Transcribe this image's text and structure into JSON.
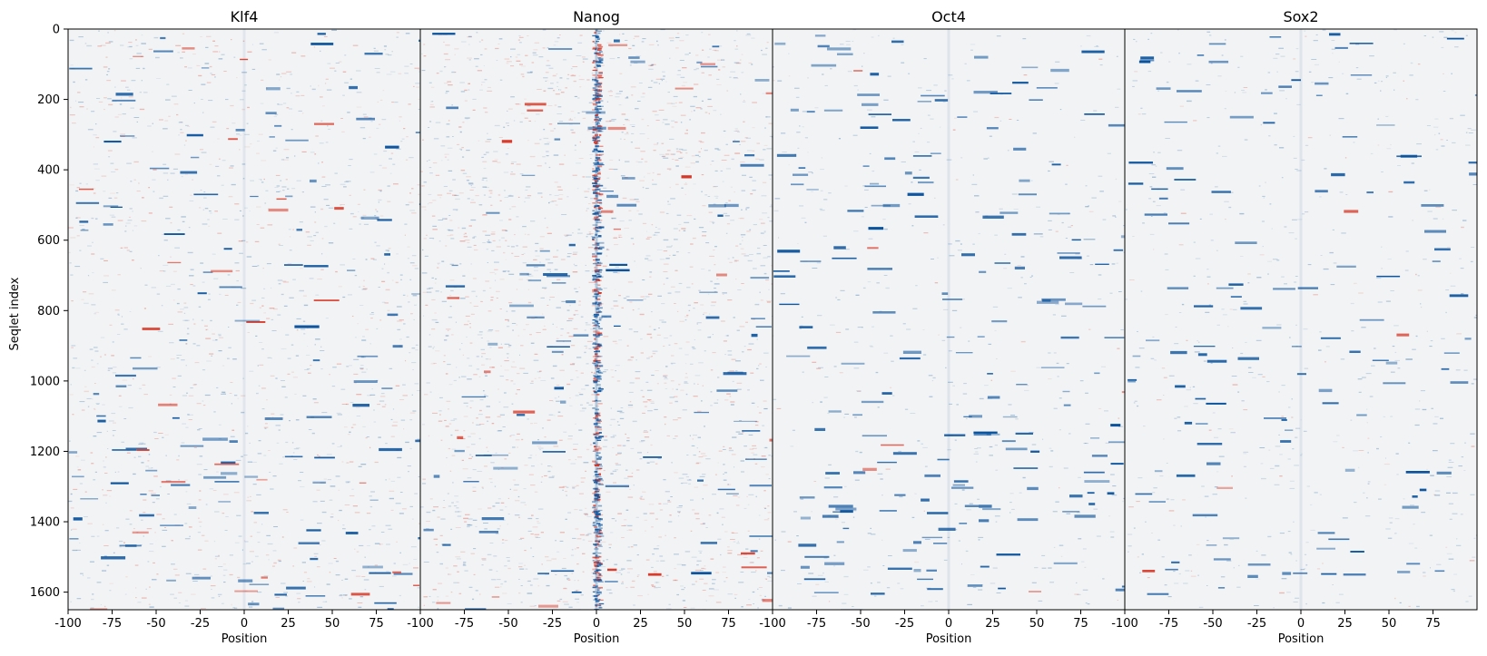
{
  "ylabel": "Seqlet index",
  "chart_data": {
    "type": "heatmap",
    "panels": [
      {
        "title": "Klf4",
        "profile": "klf4"
      },
      {
        "title": "Nanog",
        "profile": "nanog"
      },
      {
        "title": "Oct4",
        "profile": "oct4"
      },
      {
        "title": "Sox2",
        "profile": "sox2"
      }
    ],
    "xlabel": "Position",
    "ylabel": "Seqlet index",
    "xlim": [
      -100,
      100
    ],
    "ylim": [
      1650,
      0
    ],
    "x_ticks": [
      -100,
      -75,
      -50,
      -25,
      0,
      25,
      50,
      75
    ],
    "x_tick_labels": [
      "-100",
      "-75",
      "-50",
      "-25",
      "0",
      "25",
      "50",
      "75"
    ],
    "y_ticks": [
      0,
      200,
      400,
      600,
      800,
      1000,
      1200,
      1400,
      1600
    ],
    "y_tick_labels": [
      "0",
      "200",
      "400",
      "600",
      "800",
      "1000",
      "1200",
      "1400",
      "1600"
    ],
    "colormap": "diverging blue-white-red",
    "colors": {
      "negative": "#08519c",
      "neutral": "#f2f3f4",
      "positive": "#d7301f"
    }
  }
}
